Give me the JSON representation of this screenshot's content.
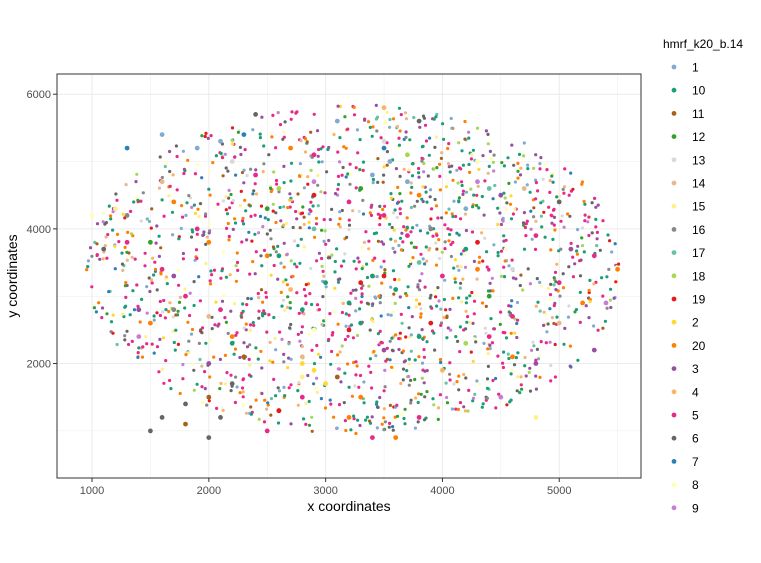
{
  "chart_data": {
    "type": "scatter",
    "title": "",
    "xlabel": "x coordinates",
    "ylabel": "y coordinates",
    "xlim": [
      700,
      5700
    ],
    "ylim": [
      300,
      6300
    ],
    "x_ticks": [
      1000,
      2000,
      3000,
      4000,
      5000
    ],
    "y_ticks": [
      2000,
      4000,
      6000
    ],
    "grid": true,
    "legend_placement": "right",
    "legend_title": "hmrf_k20_b.14",
    "series": [
      {
        "name": "1",
        "color": "#7fabd0",
        "points": [
          [
            3400,
            4800
          ],
          [
            3550,
            5000
          ],
          [
            3700,
            4700
          ],
          [
            1900,
            5200
          ],
          [
            2100,
            5300
          ],
          [
            4200,
            4300
          ],
          [
            3100,
            5600
          ],
          [
            1600,
            5400
          ]
        ]
      },
      {
        "name": "10",
        "color": "#1b9e77",
        "points": [
          [
            3000,
            3200
          ],
          [
            3200,
            2900
          ],
          [
            3400,
            3300
          ],
          [
            3600,
            3100
          ],
          [
            3300,
            2600
          ],
          [
            2800,
            2800
          ],
          [
            2600,
            3600
          ],
          [
            4200,
            3700
          ],
          [
            2200,
            2300
          ],
          [
            3800,
            2400
          ]
        ]
      },
      {
        "name": "11",
        "color": "#a6611a",
        "points": [
          [
            2300,
            2100
          ],
          [
            2000,
            1500
          ],
          [
            2600,
            1300
          ],
          [
            1800,
            1100
          ],
          [
            3100,
            1800
          ]
        ]
      },
      {
        "name": "12",
        "color": "#33a02c",
        "points": [
          [
            3300,
            4600
          ],
          [
            1500,
            3800
          ],
          [
            4400,
            3000
          ],
          [
            2500,
            4300
          ]
        ]
      },
      {
        "name": "13",
        "color": "#d9d9d9",
        "points": [
          [
            3500,
            5300
          ],
          [
            4600,
            3400
          ],
          [
            2200,
            5000
          ]
        ]
      },
      {
        "name": "14",
        "color": "#e6b88a",
        "points": [
          [
            1600,
            4700
          ],
          [
            4700,
            4600
          ],
          [
            2800,
            2100
          ],
          [
            5000,
            2600
          ],
          [
            2000,
            2700
          ]
        ]
      },
      {
        "name": "15",
        "color": "#fff08a",
        "points": [
          [
            1200,
            4300
          ],
          [
            2800,
            1800
          ],
          [
            4800,
            1200
          ]
        ]
      },
      {
        "name": "16",
        "color": "#888888",
        "points": [
          [
            1300,
            4200
          ],
          [
            3900,
            4000
          ],
          [
            1700,
            2800
          ]
        ]
      },
      {
        "name": "17",
        "color": "#66c2a5",
        "points": [
          [
            4400,
            4600
          ],
          [
            3800,
            3500
          ],
          [
            2900,
            4000
          ]
        ]
      },
      {
        "name": "18",
        "color": "#a6d854",
        "points": [
          [
            2600,
            4600
          ],
          [
            3700,
            5100
          ],
          [
            4200,
            2300
          ]
        ]
      },
      {
        "name": "19",
        "color": "#e41a1c",
        "points": [
          [
            3300,
            3200
          ],
          [
            3500,
            3300
          ],
          [
            3900,
            2600
          ],
          [
            2600,
            1300
          ],
          [
            3200,
            2500
          ],
          [
            4300,
            3800
          ],
          [
            2900,
            4500
          ]
        ]
      },
      {
        "name": "2",
        "color": "#ffd92f",
        "points": [
          [
            2800,
            2000
          ],
          [
            2900,
            1900
          ],
          [
            3000,
            1700
          ]
        ]
      },
      {
        "name": "20",
        "color": "#ff7f00",
        "points": [
          [
            1700,
            4400
          ],
          [
            2000,
            3800
          ],
          [
            2500,
            3600
          ],
          [
            3200,
            1200
          ],
          [
            3600,
            900
          ],
          [
            4600,
            2100
          ],
          [
            5200,
            2900
          ],
          [
            5500,
            3400
          ],
          [
            4300,
            3400
          ],
          [
            2200,
            2400
          ],
          [
            2700,
            5200
          ],
          [
            3800,
            4500
          ],
          [
            3300,
            1500
          ],
          [
            1500,
            2600
          ]
        ]
      },
      {
        "name": "3",
        "color": "#984ea3",
        "points": [
          [
            1400,
            2800
          ],
          [
            4800,
            2000
          ],
          [
            5300,
            2200
          ],
          [
            5100,
            3700
          ],
          [
            4500,
            4500
          ],
          [
            1700,
            3300
          ],
          [
            2000,
            2000
          ],
          [
            3500,
            2200
          ]
        ]
      },
      {
        "name": "4",
        "color": "#fdb462",
        "points": [
          [
            2700,
            3100
          ],
          [
            4000,
            1900
          ],
          [
            3500,
            5800
          ]
        ]
      },
      {
        "name": "5",
        "color": "#e7298a",
        "points": [
          [
            1300,
            3800
          ],
          [
            1600,
            3400
          ],
          [
            1900,
            4000
          ],
          [
            1800,
            3000
          ],
          [
            2400,
            4800
          ],
          [
            2900,
            5100
          ],
          [
            3500,
            4200
          ],
          [
            4000,
            3300
          ],
          [
            4600,
            2700
          ],
          [
            5000,
            3200
          ],
          [
            5300,
            3600
          ],
          [
            4800,
            3900
          ],
          [
            2100,
            2800
          ],
          [
            3200,
            4400
          ],
          [
            3700,
            3900
          ],
          [
            4400,
            2400
          ],
          [
            2800,
            1500
          ],
          [
            3400,
            900
          ],
          [
            3800,
            1200
          ],
          [
            2500,
            1000
          ]
        ]
      },
      {
        "name": "6",
        "color": "#666666",
        "points": [
          [
            1600,
            1200
          ],
          [
            1800,
            1400
          ],
          [
            2100,
            1200
          ],
          [
            2000,
            900
          ],
          [
            1500,
            1000
          ],
          [
            2200,
            1700
          ],
          [
            1100,
            3700
          ],
          [
            3800,
            5600
          ],
          [
            2400,
            5700
          ],
          [
            5000,
            4400
          ]
        ]
      },
      {
        "name": "7",
        "color": "#2c7fb8",
        "points": [
          [
            2300,
            5400
          ],
          [
            3500,
            5200
          ],
          [
            1300,
            5200
          ]
        ]
      },
      {
        "name": "8",
        "color": "#ffffb3",
        "points": [
          [
            1000,
            4200
          ],
          [
            4300,
            5000
          ],
          [
            2900,
            2500
          ]
        ]
      },
      {
        "name": "9",
        "color": "#c77cd6",
        "points": [
          [
            5400,
            2900
          ],
          [
            4500,
            1500
          ],
          [
            1400,
            2400
          ],
          [
            4300,
            4700
          ],
          [
            2900,
            4700
          ]
        ]
      }
    ]
  }
}
